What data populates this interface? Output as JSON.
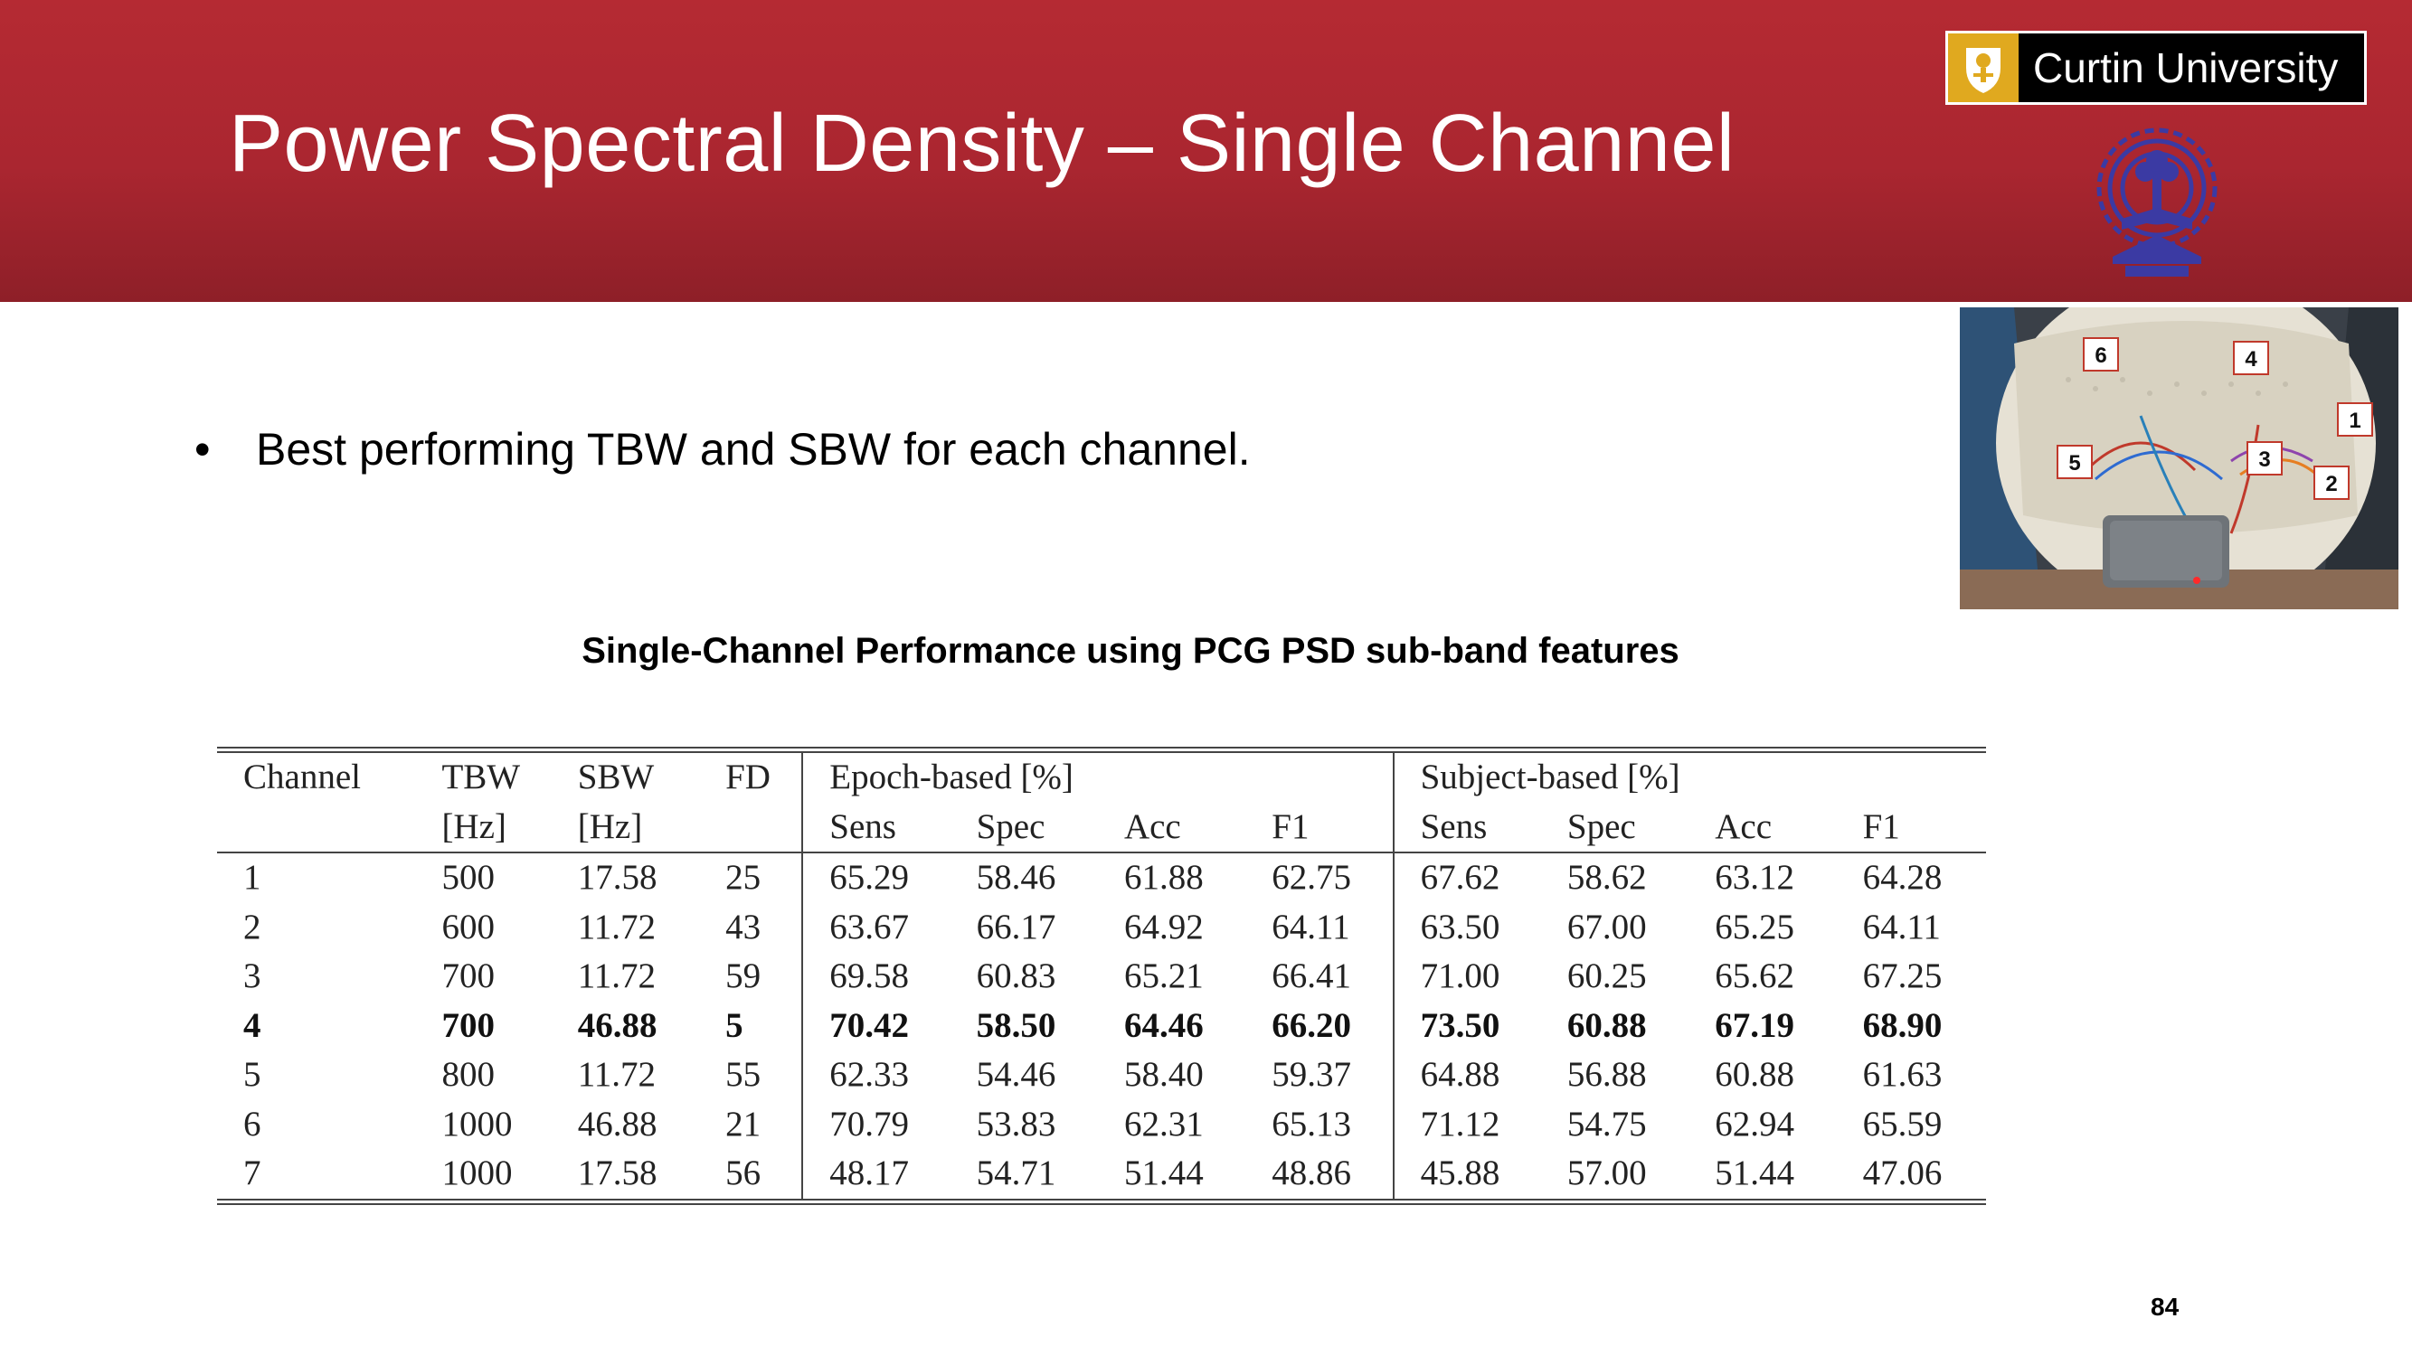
{
  "slide": {
    "title": "Power Spectral Density – Single Channel",
    "bullet": "Best performing TBW and SBW for each channel.",
    "caption": "Single-Channel Performance using PCG PSD sub-band features",
    "page_number": "84"
  },
  "logos": {
    "curtin_name": "Curtin University",
    "curtin_mark_icon": "curtin-crest-icon",
    "iit_seal_icon": "iit-kharagpur-seal-icon"
  },
  "photo": {
    "sensor_labels": [
      "6",
      "4",
      "1",
      "5",
      "3",
      "2"
    ]
  },
  "table": {
    "header_row1": [
      "Channel",
      "TBW",
      "SBW",
      "FD",
      "Epoch-based [%]",
      "Subject-based [%]"
    ],
    "header_row2": [
      "[Hz]",
      "[Hz]",
      "Sens",
      "Spec",
      "Acc",
      "F1",
      "Sens",
      "Spec",
      "Acc",
      "F1"
    ],
    "rows": [
      [
        "1",
        "500",
        "17.58",
        "25",
        "65.29",
        "58.46",
        "61.88",
        "62.75",
        "67.62",
        "58.62",
        "63.12",
        "64.28"
      ],
      [
        "2",
        "600",
        "11.72",
        "43",
        "63.67",
        "66.17",
        "64.92",
        "64.11",
        "63.50",
        "67.00",
        "65.25",
        "64.11"
      ],
      [
        "3",
        "700",
        "11.72",
        "59",
        "69.58",
        "60.83",
        "65.21",
        "66.41",
        "71.00",
        "60.25",
        "65.62",
        "67.25"
      ],
      [
        "4",
        "700",
        "46.88",
        "5",
        "70.42",
        "58.50",
        "64.46",
        "66.20",
        "73.50",
        "60.88",
        "67.19",
        "68.90"
      ],
      [
        "5",
        "800",
        "11.72",
        "55",
        "62.33",
        "54.46",
        "58.40",
        "59.37",
        "64.88",
        "56.88",
        "60.88",
        "61.63"
      ],
      [
        "6",
        "1000",
        "46.88",
        "21",
        "70.79",
        "53.83",
        "62.31",
        "65.13",
        "71.12",
        "54.75",
        "62.94",
        "65.59"
      ],
      [
        "7",
        "1000",
        "17.58",
        "56",
        "48.17",
        "54.71",
        "51.44",
        "48.86",
        "45.88",
        "57.00",
        "51.44",
        "47.06"
      ]
    ]
  },
  "colors": {
    "header_red": "#aa2630",
    "curtin_gold": "#e0a91f",
    "seal_blue": "#3b3aa3"
  }
}
